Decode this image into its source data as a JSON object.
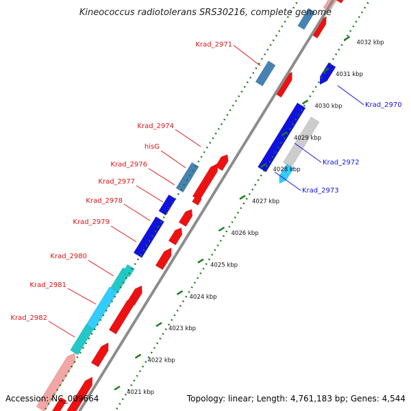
{
  "title": "Kineococcus radiotolerans SRS30216, complete genome",
  "footer": {
    "accession": "Accession: NC_009664",
    "info": "Topology: linear; Length: 4,761,183 bp; Genes: 4,544"
  },
  "colors": {
    "background": "#ffffff",
    "backbone": "#8c8c8c",
    "tick_dots": "#1a7a1a",
    "forward_gene": "#ee1111",
    "forward_gene_faded": "#f2a6a6",
    "reverse_gene": "#1111dd",
    "reverse_gene_light": "#33ccff",
    "cyan_gene": "#22c8c8",
    "steelblue_gene": "#4682b4",
    "gray_gene": "#cccccc",
    "label_red": "#dd1111",
    "label_blue": "#1111dd"
  },
  "kbp_labels": [
    "4021 kbp",
    "4022 kbp",
    "4023 kbp",
    "4024 kbp",
    "4025 kbp",
    "4026 kbp",
    "4027 kbp",
    "4028 kbp",
    "4029 kbp",
    "4030 kbp",
    "4031 kbp",
    "4032 kbp"
  ],
  "gene_labels": [
    {
      "text": "Krad_2971",
      "color": "red"
    },
    {
      "text": "Krad_2974",
      "color": "red"
    },
    {
      "text": "hisG",
      "color": "red"
    },
    {
      "text": "Krad_2976",
      "color": "red"
    },
    {
      "text": "Krad_2977",
      "color": "red"
    },
    {
      "text": "Krad_2978",
      "color": "red"
    },
    {
      "text": "Krad_2979",
      "color": "red"
    },
    {
      "text": "Krad_2980",
      "color": "red"
    },
    {
      "text": "Krad_2981",
      "color": "red"
    },
    {
      "text": "Krad_2982",
      "color": "red"
    },
    {
      "text": "Krad_2970",
      "color": "blue"
    },
    {
      "text": "Krad_2972",
      "color": "blue"
    },
    {
      "text": "Krad_2973",
      "color": "blue"
    }
  ]
}
